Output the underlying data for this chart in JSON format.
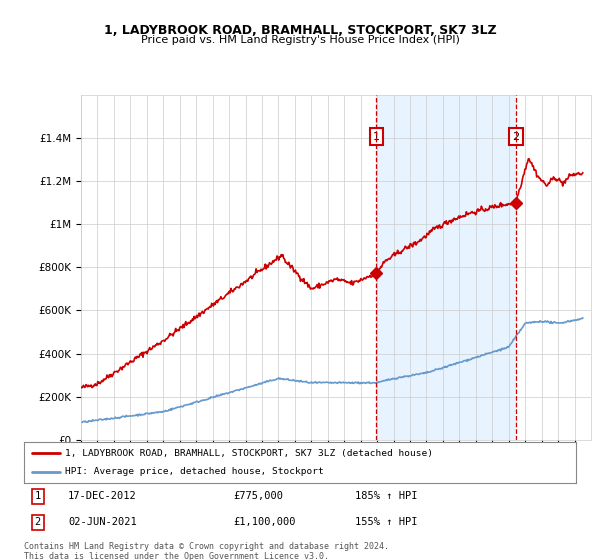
{
  "title": "1, LADYBROOK ROAD, BRAMHALL, STOCKPORT, SK7 3LZ",
  "subtitle": "Price paid vs. HM Land Registry's House Price Index (HPI)",
  "red_label": "1, LADYBROOK ROAD, BRAMHALL, STOCKPORT, SK7 3LZ (detached house)",
  "blue_label": "HPI: Average price, detached house, Stockport",
  "transaction1_date": 2012.96,
  "transaction1_price": 775000,
  "transaction1_label": "17-DEC-2012",
  "transaction1_pct": "185%",
  "transaction2_date": 2021.42,
  "transaction2_price": 1100000,
  "transaction2_label": "02-JUN-2021",
  "transaction2_pct": "155%",
  "xmin": 1995,
  "xmax": 2026,
  "ymin": 0,
  "ymax": 1600000,
  "footnote": "Contains HM Land Registry data © Crown copyright and database right 2024.\nThis data is licensed under the Open Government Licence v3.0.",
  "background_color": "#ffffff",
  "red_color": "#cc0000",
  "blue_color": "#6699cc",
  "shade_color": "#ddeeff",
  "grid_color": "#cccccc"
}
